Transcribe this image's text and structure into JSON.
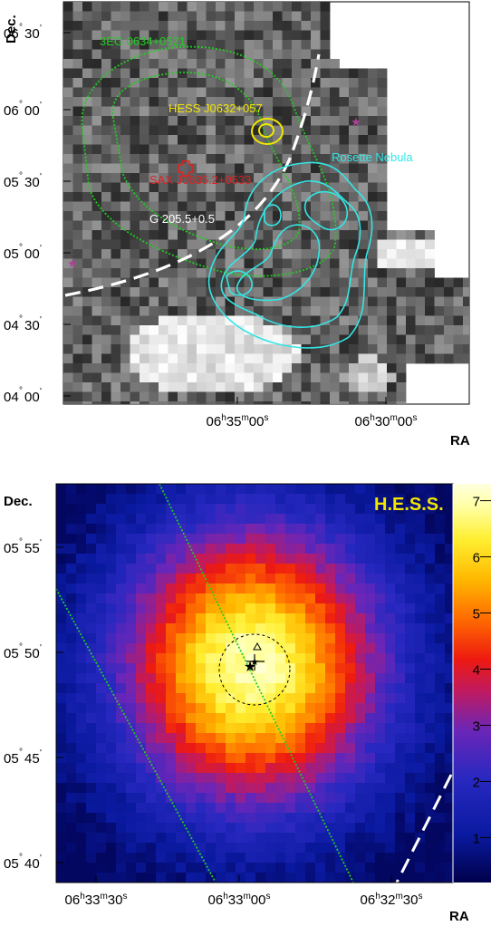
{
  "chart_data": [
    {
      "type": "heatmap",
      "colormap": "grayscale",
      "xlabel": "RA",
      "ylabel": "Dec.",
      "x_ticks": [
        {
          "h": "06",
          "m": "35",
          "s": "00",
          "value": "06h35m00s"
        },
        {
          "h": "06",
          "m": "30",
          "s": "00",
          "value": "06h30m00s"
        }
      ],
      "y_ticks": [
        {
          "deg": "06",
          "min": "30",
          "value": 6.5
        },
        {
          "deg": "06",
          "min": "00",
          "value": 6.0
        },
        {
          "deg": "05",
          "min": "30",
          "value": 5.5
        },
        {
          "deg": "05",
          "min": "00",
          "value": 5.0
        },
        {
          "deg": "04",
          "min": "30",
          "value": 4.5
        },
        {
          "deg": "04",
          "min": "00",
          "value": 4.0
        }
      ],
      "annotations": [
        {
          "text": "3EG 0634+0521",
          "color": "#22cc22"
        },
        {
          "text": "HESS J0632+057",
          "color": "#f2e600"
        },
        {
          "text": "SAX J0635.2+0533",
          "color": "#dd2222"
        },
        {
          "text": "Rosette Nebula",
          "color": "#33e6e6"
        },
        {
          "text": "G 205.5+0.5",
          "color": "#ffffff"
        }
      ],
      "overlays": [
        "3EG 0634+0521 confidence contours (green dotted)",
        "HESS J0632+057 contours (yellow)",
        "Rosette Nebula contours (cyan)",
        "SNR G 205.5+0.5 boundary (white dashed)",
        "stars (magenta)",
        "SAX J0635.2+0533 position (red cross)"
      ]
    },
    {
      "type": "heatmap",
      "colormap": "rainbow",
      "title": "H.E.S.S.",
      "xlabel": "RA",
      "ylabel": "Dec.",
      "x_ticks": [
        {
          "h": "06",
          "m": "33",
          "s": "30",
          "value": "06h33m30s"
        },
        {
          "h": "06",
          "m": "33",
          "s": "00",
          "value": "06h33m00s"
        },
        {
          "h": "06",
          "m": "32",
          "s": "30",
          "value": "06h32m30s"
        }
      ],
      "y_ticks": [
        {
          "deg": "05",
          "min": "55",
          "value": 5.9167
        },
        {
          "deg": "05",
          "min": "50",
          "value": 5.8333
        },
        {
          "deg": "05",
          "min": "45",
          "value": 5.75
        },
        {
          "deg": "05",
          "min": "40",
          "value": 5.6667
        }
      ],
      "colorbar_ticks": [
        "1",
        "2",
        "3",
        "4",
        "5",
        "6",
        "7"
      ],
      "colorbar_range": [
        0.2,
        7.3
      ],
      "peak_significance": 7.3,
      "overlays": [
        "3EG confidence contours (green dotted)",
        "SNR boundary (white dashed)",
        "source extent circle (black dashed)",
        "best-fit position (cross)",
        "stars",
        "triangle marker"
      ]
    }
  ],
  "colors": {
    "green": "#22cc22",
    "yellow": "#f2e600",
    "red": "#dd2222",
    "cyan": "#33e6e6",
    "magenta": "#b0409a",
    "title_yellow": "#f2e600"
  }
}
